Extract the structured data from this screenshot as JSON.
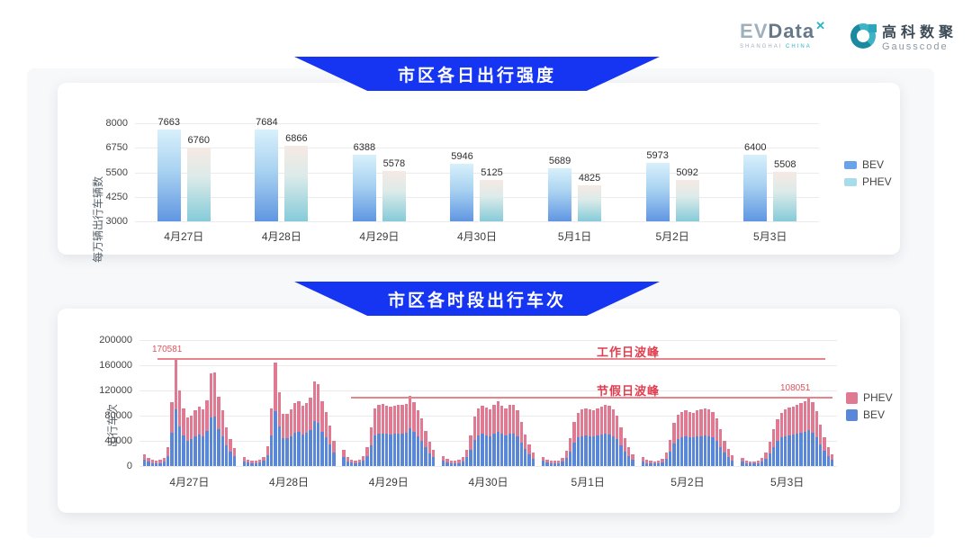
{
  "header": {
    "evdata": {
      "name_ev": "EV",
      "name_data": "Data",
      "mark": "✕",
      "subtext_left": "SHANGHAI",
      "subtext_right": "CHINA"
    },
    "gausscode": {
      "cn": "高科数聚",
      "en": "Gausscode",
      "icon": "gausscode-g-icon"
    }
  },
  "section1": {
    "title": "市区各日出行强度"
  },
  "section2": {
    "title": "市区各时段出行车次"
  },
  "colors": {
    "banner_blue": "#1535f2",
    "bev_bar_top": "#d8f0fb",
    "bev_bar_mid": "#a9d2f1",
    "bev_bar_bottom": "#6096e2",
    "phev_bar_top": "#f6e9e4",
    "phev_bar_mid": "#dcebe9",
    "phev_bar_bottom": "#85cbd9",
    "bev_legend": "#6ba3e8",
    "phev_legend": "#a7dcea",
    "stack_bev": "#5b87d9",
    "stack_phev": "#e07a92",
    "annotation_line": "#e8858c",
    "annotation_text": "#e03e4e",
    "annotation_num": "#e0545e",
    "grid": "#ebebee"
  },
  "chart_data": [
    {
      "type": "bar",
      "title": "市区各日出行强度",
      "ylabel": "每万辆出行车辆数",
      "categories": [
        "4月27日",
        "4月28日",
        "4月29日",
        "4月30日",
        "5月1日",
        "5月2日",
        "5月3日"
      ],
      "series": [
        {
          "name": "BEV",
          "values": [
            7663,
            7684,
            6388,
            5946,
            5689,
            5973,
            6400
          ]
        },
        {
          "name": "PHEV",
          "values": [
            6760,
            6866,
            5578,
            5125,
            4825,
            5092,
            5508
          ]
        }
      ],
      "ylim": [
        3000,
        8000
      ],
      "yticks": [
        3000,
        4250,
        5500,
        6750,
        8000
      ],
      "grid": true,
      "legend_position": "right",
      "data_labels": true
    },
    {
      "type": "bar",
      "stacked": true,
      "title": "市区各时段出行车次",
      "ylabel": "出行车次",
      "categories": [
        "4月27日",
        "4月28日",
        "4月29日",
        "4月30日",
        "5月1日",
        "5月2日",
        "5月3日"
      ],
      "bars_per_day": 24,
      "ylim": [
        0,
        200000
      ],
      "yticks": [
        0,
        40000,
        80000,
        120000,
        160000,
        200000
      ],
      "grid": true,
      "legend_position": "right",
      "annotations": [
        {
          "label": "工作日波峰",
          "value_label": "170581",
          "value": 170581
        },
        {
          "label": "节假日波峰",
          "value_label": "108051",
          "value": 108051
        }
      ],
      "series": [
        {
          "name": "BEV",
          "values_by_day": [
            [
              9500,
              6600,
              5000,
              4500,
              5000,
              6900,
              15900,
              53500,
              90408,
              63300,
              48800,
              40500,
              42700,
              46900,
              50100,
              47400,
              55400,
              77600,
              79000,
              58300,
              46600,
              32300,
              22800,
              15400
            ],
            [
              7400,
              5300,
              4200,
              4200,
              5300,
              8000,
              17000,
              48800,
              86900,
              62300,
              44000,
              43700,
              47700,
              53000,
              54300,
              50600,
              53000,
              57500,
              71000,
              68600,
              54600,
              45600,
              33900,
              21200
            ],
            [
              13800,
              7400,
              5300,
              4800,
              5300,
              8500,
              15900,
              32900,
              48800,
              51400,
              51900,
              50900,
              50400,
              50900,
              51100,
              51700,
              52200,
              59400,
              54100,
              46600,
              40300,
              29700,
              20100,
              13800
            ],
            [
              8500,
              5800,
              4800,
              4500,
              5000,
              7400,
              13800,
              25400,
              41300,
              48800,
              50900,
              49300,
              47700,
              51400,
              54600,
              50900,
              48800,
              51100,
              51400,
              46600,
              37100,
              26500,
              18000,
              11700
            ],
            [
              8000,
              5300,
              4500,
              4200,
              4800,
              6900,
              12700,
              23300,
              37100,
              45100,
              47700,
              48800,
              47700,
              46600,
              48800,
              50400,
              51400,
              50600,
              47700,
              42400,
              32900,
              23300,
              15900,
              10100
            ],
            [
              7400,
              5000,
              4200,
              4000,
              4500,
              6400,
              11700,
              22300,
              36000,
              43500,
              45600,
              46600,
              45600,
              45100,
              46600,
              47700,
              48800,
              47700,
              45600,
              40300,
              30700,
              21200,
              14300,
              9000
            ],
            [
              6900,
              4800,
              4000,
              4000,
              4800,
              6900,
              11700,
              20100,
              30700,
              39800,
              45100,
              47700,
              49300,
              50400,
              51400,
              53000,
              54600,
              57267,
              53500,
              46100,
              35000,
              24400,
              15900,
              9500
            ]
          ]
        },
        {
          "name": "PHEV",
          "values_by_day": [
            [
              8500,
              5900,
              4500,
              4000,
              4500,
              6100,
              14100,
              47500,
              80173,
              56200,
              43200,
              36000,
              37800,
              41600,
              44400,
              42100,
              49100,
              68900,
              70000,
              51700,
              41400,
              28700,
              20200,
              13600
            ],
            [
              6600,
              4700,
              3800,
              3800,
              4700,
              7000,
              15000,
              43200,
              77100,
              55200,
              39000,
              38800,
              42300,
              47000,
              48200,
              44900,
              47000,
              51000,
              63000,
              60900,
              48400,
              40400,
              30100,
              18800
            ],
            [
              12200,
              6600,
              4700,
              4200,
              4700,
              7500,
              14100,
              29100,
              43200,
              45600,
              46100,
              45100,
              44600,
              45100,
              45400,
              45800,
              46300,
              52600,
              47900,
              41400,
              35700,
              26300,
              17900,
              12200
            ],
            [
              7500,
              5200,
              4200,
              4000,
              4500,
              6600,
              12200,
              22600,
              36700,
              43200,
              45100,
              43700,
              42300,
              45600,
              48400,
              45100,
              43200,
              45400,
              45600,
              41400,
              32900,
              23500,
              16000,
              10300
            ],
            [
              7000,
              4700,
              4000,
              3800,
              4200,
              6100,
              11300,
              20700,
              32900,
              39900,
              42300,
              43200,
              42300,
              41400,
              43200,
              44600,
              45600,
              44900,
              42300,
              37600,
              29100,
              20700,
              14100,
              8900
            ],
            [
              6600,
              4500,
              3800,
              3500,
              4000,
              5600,
              10300,
              19700,
              32000,
              38500,
              40400,
              41400,
              40400,
              39900,
              41400,
              42300,
              43200,
              42300,
              40400,
              35700,
              27300,
              18800,
              12700,
              8000
            ],
            [
              6100,
              4200,
              3500,
              3500,
              4200,
              6100,
              10300,
              17900,
              27300,
              35200,
              39900,
              42300,
              43700,
              44600,
              45600,
              47000,
              48400,
              50784,
              47500,
              40900,
              31000,
              21600,
              14100,
              8500
            ]
          ]
        }
      ]
    }
  ]
}
